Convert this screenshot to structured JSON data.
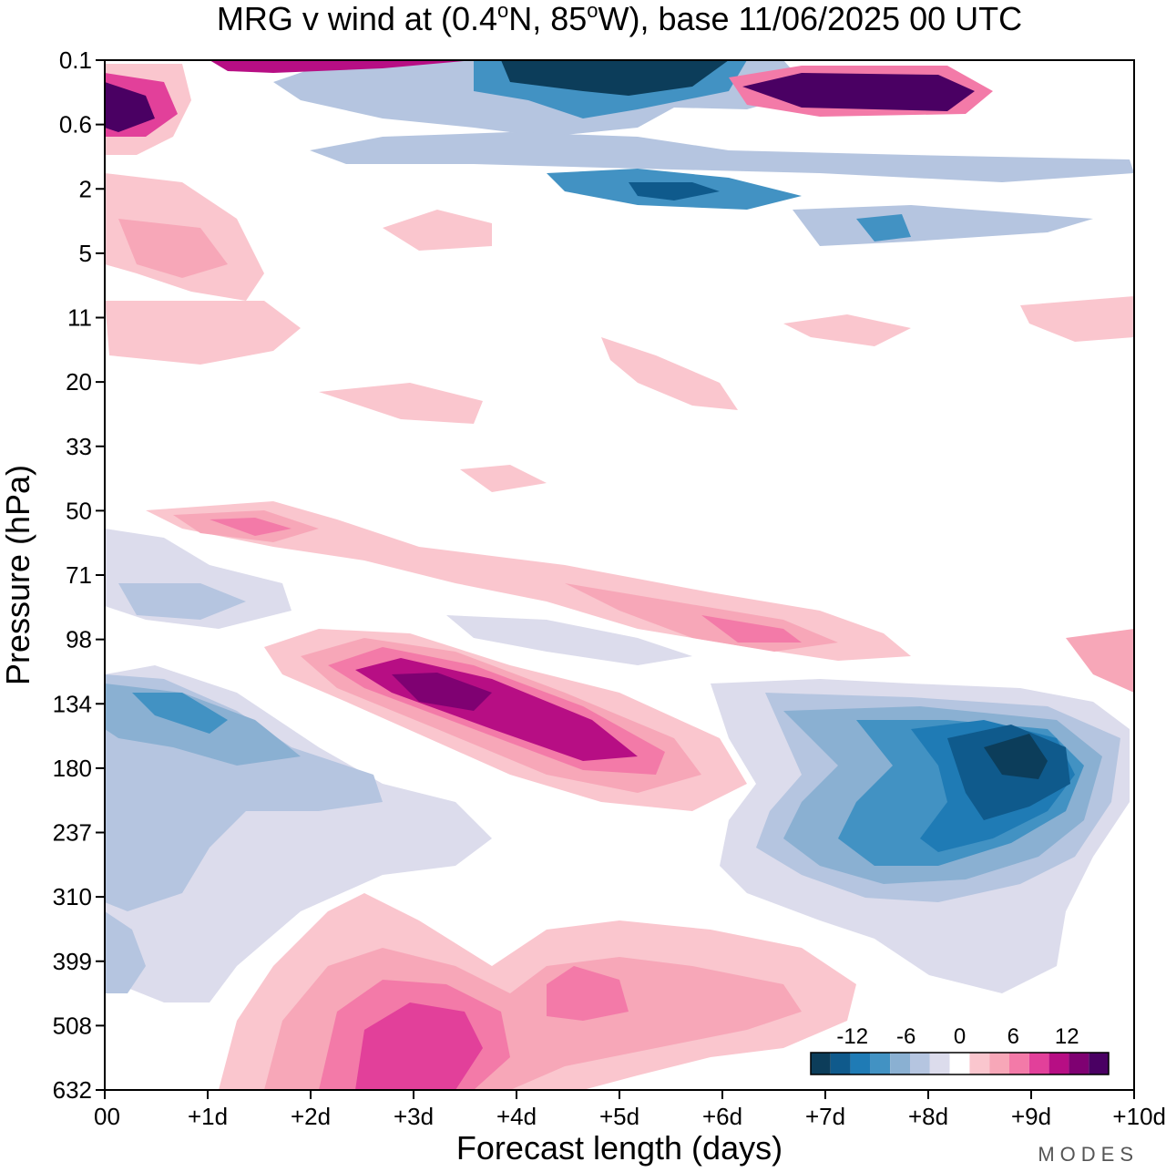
{
  "chart_data": {
    "type": "heatmap",
    "subtype": "filled-contour",
    "title_parts": [
      "MRG v wind at (0.4",
      "o",
      "N, 85",
      "o",
      "W),  base 11/06/2025  00 UTC"
    ],
    "xlabel": "Forecast length (days)",
    "ylabel": "Pressure (hPa)",
    "x_ticks": [
      "00",
      "+1d",
      "+2d",
      "+3d",
      "+4d",
      "+5d",
      "+6d",
      "+7d",
      "+8d",
      "+9d",
      "+10d"
    ],
    "xlim": [
      0,
      10
    ],
    "y_ticks": [
      "0.1",
      "0.6",
      "2",
      "5",
      "11",
      "20",
      "33",
      "50",
      "71",
      "98",
      "134",
      "180",
      "237",
      "310",
      "399",
      "508",
      "632"
    ],
    "y_scale": "categorical-levels, top to bottom",
    "colorbar": {
      "labels": [
        "-12",
        "-6",
        "0",
        "6",
        "12"
      ],
      "levels": [
        -15,
        -12.5,
        -10,
        -7.5,
        -5,
        -2.5,
        2.5,
        5,
        7.5,
        10,
        12.5,
        15
      ],
      "colors": [
        "#0c3d5a",
        "#0f5a8c",
        "#1f7bb5",
        "#4292c3",
        "#8ab0d2",
        "#b5c5e0",
        "#dcdcec",
        "#ffffff",
        "#fac6ce",
        "#f7a7b8",
        "#f37aa8",
        "#e2409a",
        "#b70e84",
        "#7f0172",
        "#4a0063"
      ]
    },
    "features": [
      {
        "name": "positive-max-upper-troposphere",
        "day_start": 2.5,
        "day_end": 5.0,
        "level_range": [
          "98",
          "237"
        ],
        "peak_value": 14
      },
      {
        "name": "negative-min-upper-troposphere",
        "day_start": 6.5,
        "day_end": 10.0,
        "level_range": [
          "134",
          "399"
        ],
        "peak_value": -15
      },
      {
        "name": "positive-lower-troposphere",
        "day_start": 2.0,
        "day_end": 7.0,
        "level_range": [
          "310",
          "632"
        ],
        "peak_value": 9
      },
      {
        "name": "negative-stratopause-band",
        "day_start": 4.0,
        "day_end": 6.5,
        "level_range": [
          "0.1",
          "0.6"
        ],
        "peak_value": -15
      },
      {
        "name": "positive-mesosphere-max",
        "day_start": 6.0,
        "day_end": 8.5,
        "level_range": [
          "0.1",
          "0.6"
        ],
        "peak_value": 15
      }
    ]
  },
  "logo": "MODES"
}
